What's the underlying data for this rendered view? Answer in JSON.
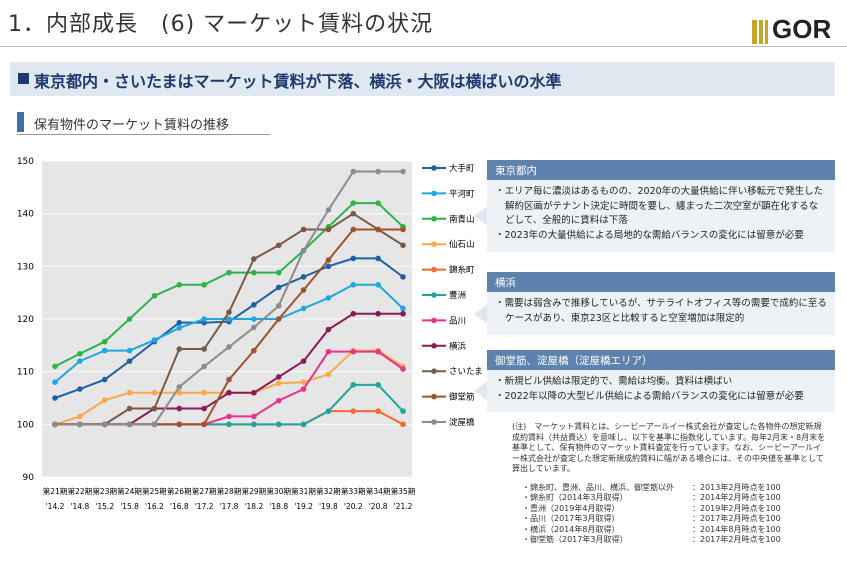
{
  "header": {
    "title": "1．内部成長　(6) マーケット賃料の状況",
    "logo": "GOR"
  },
  "banner": "東京都内・さいたまはマーケット賃料が下落、横浜・大阪は横ばいの水準",
  "chart_data": {
    "type": "line",
    "title": "保有物件のマーケット賃料の推移",
    "categories": [
      "第21期",
      "第22期",
      "第23期",
      "第24期",
      "第25期",
      "第26期",
      "第27期",
      "第28期",
      "第29期",
      "第30期",
      "第31期",
      "第32期",
      "第33期",
      "第34期",
      "第35期"
    ],
    "category_dates": [
      "'14.2",
      "'14.8",
      "'15.2",
      "'15.8",
      "'16.2",
      "'16.8",
      "'17.2",
      "'17.8",
      "'18.2",
      "'18.8",
      "'19.2",
      "'19.8",
      "'20.2",
      "'20.8",
      "'21.2"
    ],
    "ylim": [
      90,
      150
    ],
    "yticks": [
      90,
      100,
      110,
      120,
      130,
      140,
      150
    ],
    "series": [
      {
        "name": "大手町",
        "color": "#1f5fa8",
        "values": [
          105,
          106.7,
          108.5,
          112,
          115.7,
          119.3,
          119.3,
          119.5,
          122.7,
          126,
          128,
          130,
          131.5,
          131.5,
          128
        ]
      },
      {
        "name": "平河町",
        "color": "#1ea7e1",
        "values": [
          108,
          112,
          114,
          114,
          116,
          118.3,
          120,
          120,
          120,
          120,
          122,
          124,
          126.5,
          126.5,
          122
        ]
      },
      {
        "name": "南青山",
        "color": "#2cb34a",
        "values": [
          111,
          113.4,
          115.7,
          120,
          124.4,
          126.5,
          126.5,
          128.8,
          128.8,
          128.8,
          133,
          137.5,
          142,
          142,
          137.5
        ]
      },
      {
        "name": "仙石山",
        "color": "#f9a94a",
        "values": [
          100,
          101.5,
          104.6,
          106,
          106,
          106,
          106,
          106,
          106,
          107.8,
          108,
          109.5,
          114,
          114,
          111
        ]
      },
      {
        "name": "錦糸町",
        "color": "#f26a2e",
        "values": [
          100,
          100,
          100,
          100,
          100,
          100,
          100,
          100,
          100,
          100,
          100,
          102.5,
          102.5,
          102.5,
          100
        ]
      },
      {
        "name": "豊洲",
        "color": "#1ea79c",
        "values": [
          100,
          100,
          100,
          100,
          100,
          100,
          100,
          100,
          100,
          100,
          100,
          102.5,
          107.5,
          107.5,
          102.5
        ]
      },
      {
        "name": "品川",
        "color": "#e5338e",
        "values": [
          100,
          100,
          100,
          100,
          100,
          100,
          100,
          101.5,
          101.5,
          104.5,
          106.7,
          113.8,
          113.8,
          113.8,
          110.5
        ]
      },
      {
        "name": "横浜",
        "color": "#8c1a5a",
        "values": [
          100,
          100,
          100,
          100,
          103,
          103,
          103,
          106,
          106,
          109,
          112,
          118,
          121,
          121,
          121
        ]
      },
      {
        "name": "さいたま",
        "color": "#7a5a45",
        "values": [
          100,
          100,
          100,
          103,
          103,
          114.3,
          114.3,
          121.3,
          131.4,
          134,
          137,
          137,
          140,
          137,
          134
        ]
      },
      {
        "name": "御堂筋",
        "color": "#a0522d",
        "values": [
          100,
          100,
          100,
          100,
          100,
          100,
          100,
          108.5,
          114,
          120,
          125.5,
          131.2,
          137,
          137,
          137
        ]
      },
      {
        "name": "淀屋橋",
        "color": "#8c8c8c",
        "values": [
          100,
          100,
          100,
          100,
          100,
          107.1,
          111,
          114.7,
          118.4,
          122.5,
          133,
          140.7,
          148,
          148,
          148
        ]
      }
    ]
  },
  "panels": [
    {
      "title": "東京都内",
      "items": [
        "・エリア毎に濃淡はあるものの、2020年の大量供給に伴い移転元で発生した解約区画がテナント決定に時間を要し、纏まった二次空室が顕在化するなどして、全般的に賃料は下落",
        "・2023年の大量供給による局地的な需給バランスの変化には留意が必要"
      ]
    },
    {
      "title": "横浜",
      "items": [
        "・需要は弱含みで推移しているが、サテライトオフィス等の需要で成約に至るケースがあり、東京23区と比較すると空室増加は限定的"
      ]
    },
    {
      "title": "御堂筋、淀屋橋（淀屋橋エリア）",
      "items": [
        "・新規ビル供給は限定的で、需給は均衡。賃料は横ばい",
        "・2022年以降の大型ビル供給による需給バランスの変化には留意が必要"
      ]
    }
  ],
  "notes": {
    "text": "(注)　マーケット賃料とは、シービーアールイー株式会社が査定した各物件の想定新規成約賃料（共益費込）を意味し、以下を基準に指数化しています。毎年2月末・8月末を基準として、保有物件のマーケット賃料査定を行っています。なお、シービーアールイー株式会社が査定した想定新規成約賃料に幅がある場合には、その中央値を基準として算出しています。",
    "list": [
      [
        "・錦糸町、豊洲、品川、横浜、御堂筋以外",
        "：2013年2月時点を100"
      ],
      [
        "・錦糸町（2014年3月取得）",
        "：2014年2月時点を100"
      ],
      [
        "・豊洲（2019年4月取得）",
        "：2019年2月時点を100"
      ],
      [
        "・品川（2017年3月取得）",
        "：2017年2月時点を100"
      ],
      [
        "・横浜（2014年8月取得）",
        "：2014年8月時点を100"
      ],
      [
        "・御堂筋（2017年3月取得）",
        "：2017年2月時点を100"
      ]
    ]
  }
}
